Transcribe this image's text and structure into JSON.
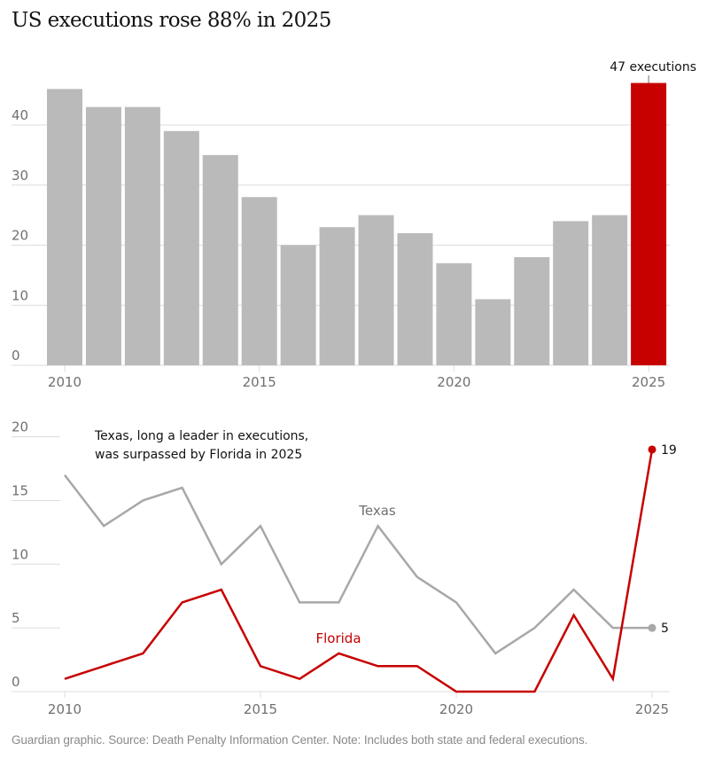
{
  "title": "US executions rose 88% in 2025",
  "source": "Guardian graphic. Source: Death Penalty Information Center. Note: Includes both state and federal executions.",
  "colors": {
    "bar": "#bababa",
    "highlight": "#c70000",
    "texas": "#a8a8a8",
    "florida": "#c70000",
    "grid": "#dcdcdc",
    "tick_text": "#707070",
    "annotation_text": "#121212"
  },
  "chart_data": [
    {
      "type": "bar",
      "title": "US executions rose 88% in 2025",
      "categories": [
        2010,
        2011,
        2012,
        2013,
        2014,
        2015,
        2016,
        2017,
        2018,
        2019,
        2020,
        2021,
        2022,
        2023,
        2024,
        2025
      ],
      "values": [
        46,
        43,
        43,
        39,
        35,
        28,
        20,
        23,
        25,
        22,
        17,
        11,
        18,
        24,
        25,
        47
      ],
      "highlight_category": 2025,
      "xlabel": "",
      "ylabel": "",
      "ylim": [
        0,
        47
      ],
      "yticks": [
        0,
        10,
        20,
        30,
        40
      ],
      "xticks": [
        2010,
        2015,
        2020,
        2025
      ],
      "grid": true,
      "annotation": {
        "category": 2025,
        "text": "47 executions"
      }
    },
    {
      "type": "line",
      "x": [
        2010,
        2011,
        2012,
        2013,
        2014,
        2015,
        2016,
        2017,
        2018,
        2019,
        2020,
        2021,
        2022,
        2023,
        2024,
        2025
      ],
      "series": [
        {
          "name": "Texas",
          "values": [
            17,
            13,
            15,
            16,
            10,
            13,
            7,
            7,
            13,
            9,
            7,
            3,
            5,
            8,
            5,
            5
          ],
          "end_label": "5"
        },
        {
          "name": "Florida",
          "values": [
            1,
            2,
            3,
            7,
            8,
            2,
            1,
            3,
            2,
            2,
            0,
            0,
            0,
            6,
            1,
            19
          ],
          "end_label": "19"
        }
      ],
      "xlabel": "",
      "ylabel": "",
      "ylim": [
        0,
        20
      ],
      "yticks": [
        0,
        5,
        10,
        15,
        20
      ],
      "xticks": [
        2010,
        2015,
        2020,
        2025
      ],
      "grid": true,
      "annotation": "Texas, long a leader in executions, was surpassed by Florida in 2025",
      "annotation_lines": [
        "Texas, long a leader in executions,",
        "was surpassed by Florida in 2025"
      ]
    }
  ]
}
